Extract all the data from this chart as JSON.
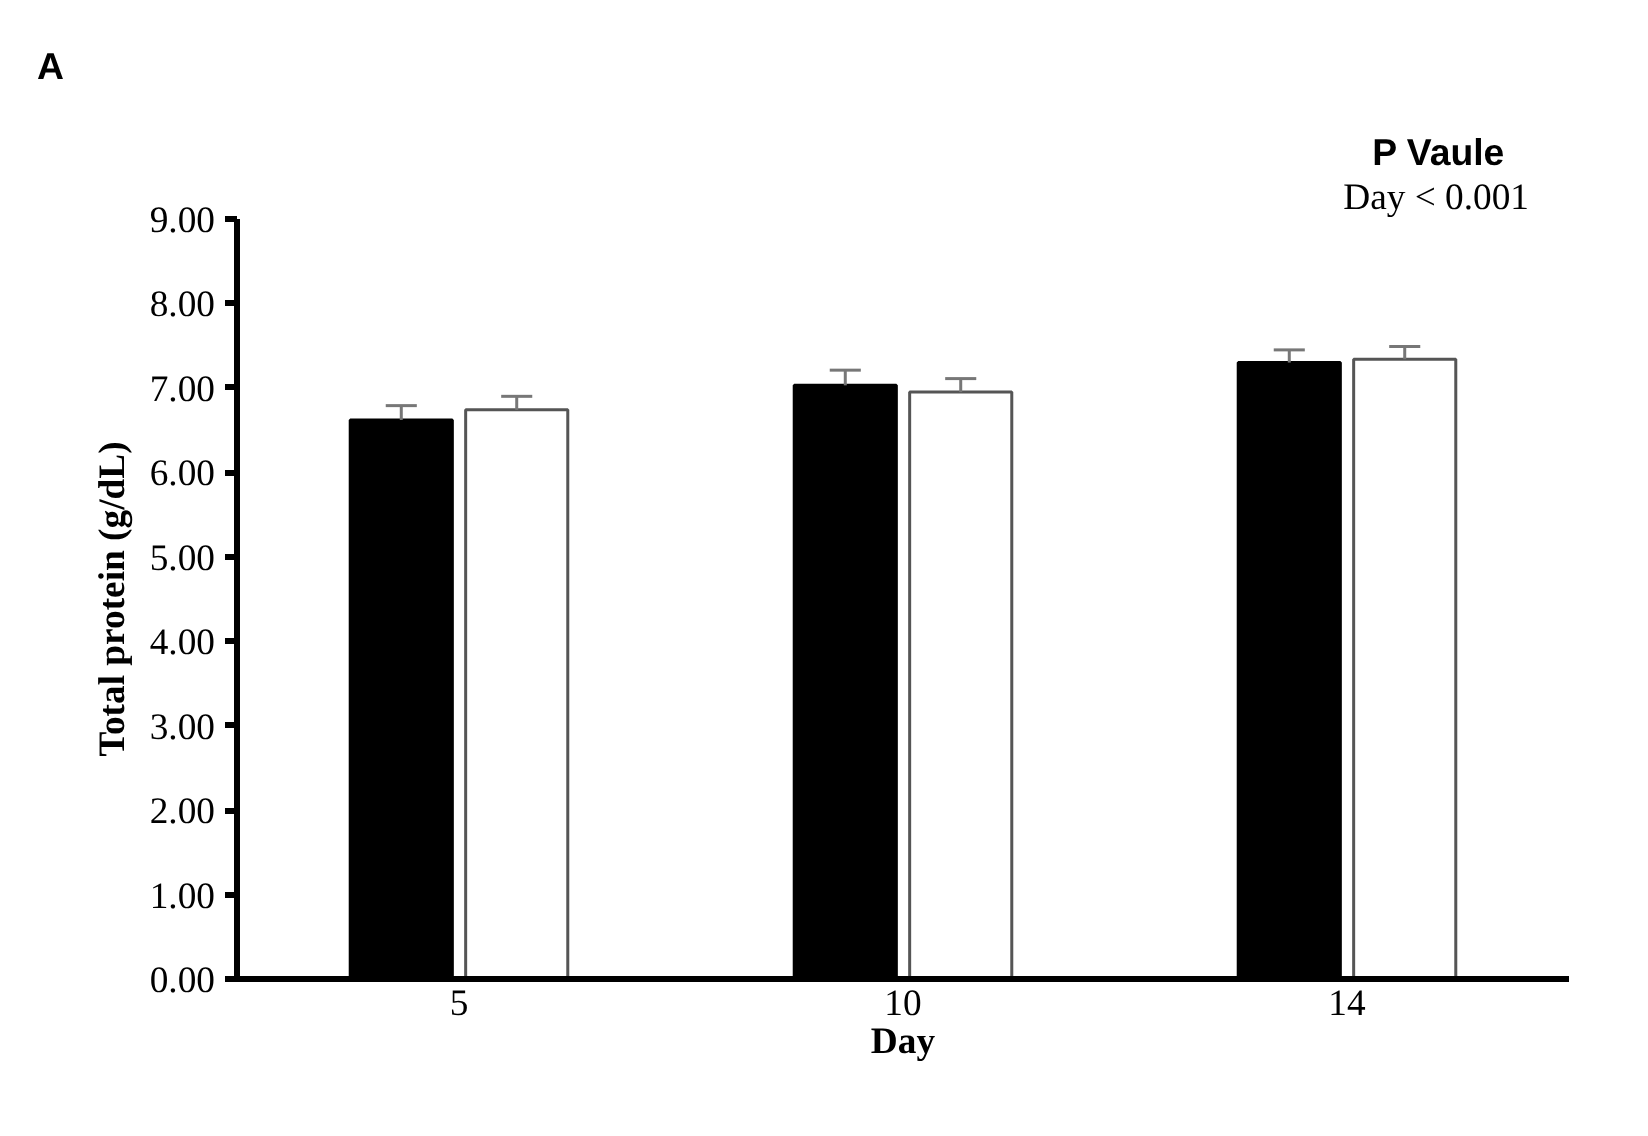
{
  "chart_data": {
    "type": "bar",
    "title": "A",
    "xlabel": "Day",
    "ylabel": "Total protein (g/dL)",
    "categories": [
      "5",
      "10",
      "14"
    ],
    "series": [
      {
        "color": "#000000",
        "values": [
          6.62,
          7.03,
          7.3
        ],
        "errors": [
          [
            6.62,
            6.79
          ],
          [
            7.03,
            7.21
          ],
          [
            7.3,
            7.45
          ]
        ]
      },
      {
        "color": "#ffffff",
        "values": [
          6.74,
          6.95,
          7.34
        ],
        "errors": [
          [
            6.74,
            6.9
          ],
          [
            6.95,
            7.11
          ],
          [
            7.34,
            7.49
          ]
        ]
      }
    ],
    "ylim": [
      0,
      9
    ],
    "yticks": [
      {
        "value": 0,
        "label": "0.00"
      },
      {
        "value": 1,
        "label": "1.00"
      },
      {
        "value": 2,
        "label": "2.00"
      },
      {
        "value": 3,
        "label": "3.00"
      },
      {
        "value": 4,
        "label": "4.00"
      },
      {
        "value": 5,
        "label": "5.00"
      },
      {
        "value": 6,
        "label": "6.00"
      },
      {
        "value": 7,
        "label": "7.00"
      },
      {
        "value": 8,
        "label": "8.00"
      },
      {
        "value": 9,
        "label": "9.00"
      }
    ],
    "annotations": [
      "P Vaule",
      "Day < 0.001"
    ],
    "grid": false
  }
}
